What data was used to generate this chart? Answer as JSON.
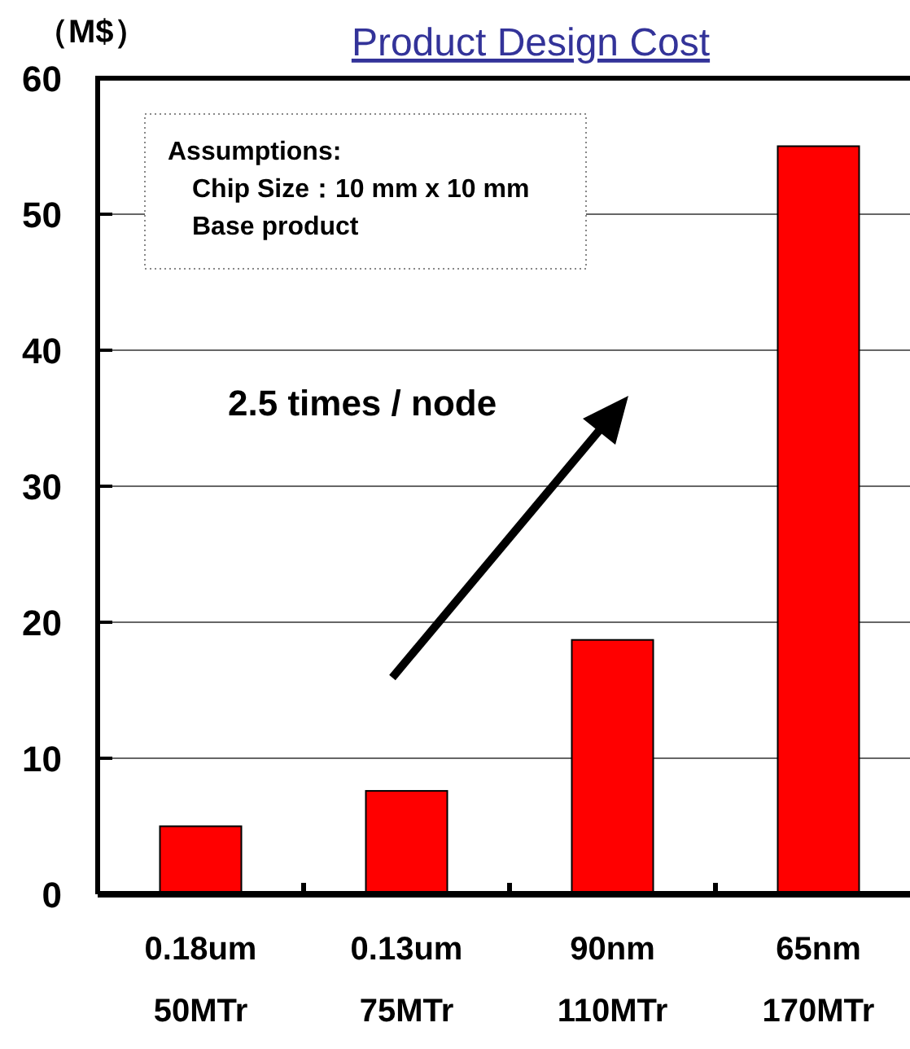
{
  "chart_data": {
    "type": "bar",
    "title": "Product Design Cost",
    "ylabel": "（M$）",
    "categories": [
      "0.18um\n50MTr",
      "0.13um\n75MTr",
      "90nm\n110MTr",
      "65nm\n170MTr"
    ],
    "values": [
      5,
      7.6,
      18.7,
      55
    ],
    "color": "#ff0000",
    "ylim": [
      0,
      60
    ],
    "yticks": [
      0,
      10,
      20,
      30,
      40,
      50,
      60
    ],
    "grid": "y",
    "annotations": [
      "Assumptions:\nChip Size：10 mm x 10 mm\nBase product",
      "2.5 times / node"
    ]
  }
}
